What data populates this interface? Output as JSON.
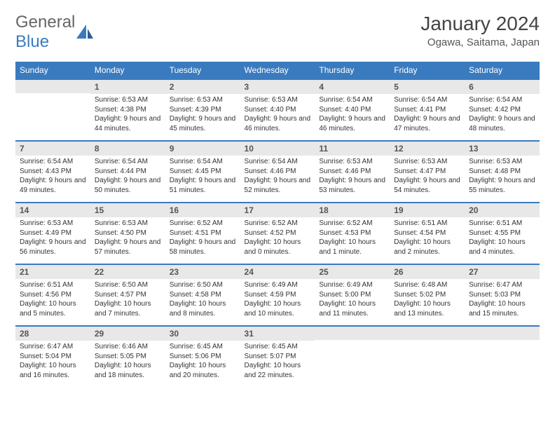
{
  "brand": {
    "part1": "General",
    "part2": "Blue"
  },
  "title": "January 2024",
  "location": "Ogawa, Saitama, Japan",
  "colors": {
    "accent": "#3a7bbf",
    "dayNumBg": "#e8e8e8",
    "text": "#333333",
    "bg": "#ffffff"
  },
  "dayHeaders": [
    "Sunday",
    "Monday",
    "Tuesday",
    "Wednesday",
    "Thursday",
    "Friday",
    "Saturday"
  ],
  "weeks": [
    [
      {
        "n": "",
        "sr": "",
        "ss": "",
        "dl": ""
      },
      {
        "n": "1",
        "sr": "Sunrise: 6:53 AM",
        "ss": "Sunset: 4:38 PM",
        "dl": "Daylight: 9 hours and 44 minutes."
      },
      {
        "n": "2",
        "sr": "Sunrise: 6:53 AM",
        "ss": "Sunset: 4:39 PM",
        "dl": "Daylight: 9 hours and 45 minutes."
      },
      {
        "n": "3",
        "sr": "Sunrise: 6:53 AM",
        "ss": "Sunset: 4:40 PM",
        "dl": "Daylight: 9 hours and 46 minutes."
      },
      {
        "n": "4",
        "sr": "Sunrise: 6:54 AM",
        "ss": "Sunset: 4:40 PM",
        "dl": "Daylight: 9 hours and 46 minutes."
      },
      {
        "n": "5",
        "sr": "Sunrise: 6:54 AM",
        "ss": "Sunset: 4:41 PM",
        "dl": "Daylight: 9 hours and 47 minutes."
      },
      {
        "n": "6",
        "sr": "Sunrise: 6:54 AM",
        "ss": "Sunset: 4:42 PM",
        "dl": "Daylight: 9 hours and 48 minutes."
      }
    ],
    [
      {
        "n": "7",
        "sr": "Sunrise: 6:54 AM",
        "ss": "Sunset: 4:43 PM",
        "dl": "Daylight: 9 hours and 49 minutes."
      },
      {
        "n": "8",
        "sr": "Sunrise: 6:54 AM",
        "ss": "Sunset: 4:44 PM",
        "dl": "Daylight: 9 hours and 50 minutes."
      },
      {
        "n": "9",
        "sr": "Sunrise: 6:54 AM",
        "ss": "Sunset: 4:45 PM",
        "dl": "Daylight: 9 hours and 51 minutes."
      },
      {
        "n": "10",
        "sr": "Sunrise: 6:54 AM",
        "ss": "Sunset: 4:46 PM",
        "dl": "Daylight: 9 hours and 52 minutes."
      },
      {
        "n": "11",
        "sr": "Sunrise: 6:53 AM",
        "ss": "Sunset: 4:46 PM",
        "dl": "Daylight: 9 hours and 53 minutes."
      },
      {
        "n": "12",
        "sr": "Sunrise: 6:53 AM",
        "ss": "Sunset: 4:47 PM",
        "dl": "Daylight: 9 hours and 54 minutes."
      },
      {
        "n": "13",
        "sr": "Sunrise: 6:53 AM",
        "ss": "Sunset: 4:48 PM",
        "dl": "Daylight: 9 hours and 55 minutes."
      }
    ],
    [
      {
        "n": "14",
        "sr": "Sunrise: 6:53 AM",
        "ss": "Sunset: 4:49 PM",
        "dl": "Daylight: 9 hours and 56 minutes."
      },
      {
        "n": "15",
        "sr": "Sunrise: 6:53 AM",
        "ss": "Sunset: 4:50 PM",
        "dl": "Daylight: 9 hours and 57 minutes."
      },
      {
        "n": "16",
        "sr": "Sunrise: 6:52 AM",
        "ss": "Sunset: 4:51 PM",
        "dl": "Daylight: 9 hours and 58 minutes."
      },
      {
        "n": "17",
        "sr": "Sunrise: 6:52 AM",
        "ss": "Sunset: 4:52 PM",
        "dl": "Daylight: 10 hours and 0 minutes."
      },
      {
        "n": "18",
        "sr": "Sunrise: 6:52 AM",
        "ss": "Sunset: 4:53 PM",
        "dl": "Daylight: 10 hours and 1 minute."
      },
      {
        "n": "19",
        "sr": "Sunrise: 6:51 AM",
        "ss": "Sunset: 4:54 PM",
        "dl": "Daylight: 10 hours and 2 minutes."
      },
      {
        "n": "20",
        "sr": "Sunrise: 6:51 AM",
        "ss": "Sunset: 4:55 PM",
        "dl": "Daylight: 10 hours and 4 minutes."
      }
    ],
    [
      {
        "n": "21",
        "sr": "Sunrise: 6:51 AM",
        "ss": "Sunset: 4:56 PM",
        "dl": "Daylight: 10 hours and 5 minutes."
      },
      {
        "n": "22",
        "sr": "Sunrise: 6:50 AM",
        "ss": "Sunset: 4:57 PM",
        "dl": "Daylight: 10 hours and 7 minutes."
      },
      {
        "n": "23",
        "sr": "Sunrise: 6:50 AM",
        "ss": "Sunset: 4:58 PM",
        "dl": "Daylight: 10 hours and 8 minutes."
      },
      {
        "n": "24",
        "sr": "Sunrise: 6:49 AM",
        "ss": "Sunset: 4:59 PM",
        "dl": "Daylight: 10 hours and 10 minutes."
      },
      {
        "n": "25",
        "sr": "Sunrise: 6:49 AM",
        "ss": "Sunset: 5:00 PM",
        "dl": "Daylight: 10 hours and 11 minutes."
      },
      {
        "n": "26",
        "sr": "Sunrise: 6:48 AM",
        "ss": "Sunset: 5:02 PM",
        "dl": "Daylight: 10 hours and 13 minutes."
      },
      {
        "n": "27",
        "sr": "Sunrise: 6:47 AM",
        "ss": "Sunset: 5:03 PM",
        "dl": "Daylight: 10 hours and 15 minutes."
      }
    ],
    [
      {
        "n": "28",
        "sr": "Sunrise: 6:47 AM",
        "ss": "Sunset: 5:04 PM",
        "dl": "Daylight: 10 hours and 16 minutes."
      },
      {
        "n": "29",
        "sr": "Sunrise: 6:46 AM",
        "ss": "Sunset: 5:05 PM",
        "dl": "Daylight: 10 hours and 18 minutes."
      },
      {
        "n": "30",
        "sr": "Sunrise: 6:45 AM",
        "ss": "Sunset: 5:06 PM",
        "dl": "Daylight: 10 hours and 20 minutes."
      },
      {
        "n": "31",
        "sr": "Sunrise: 6:45 AM",
        "ss": "Sunset: 5:07 PM",
        "dl": "Daylight: 10 hours and 22 minutes."
      },
      {
        "n": "",
        "sr": "",
        "ss": "",
        "dl": ""
      },
      {
        "n": "",
        "sr": "",
        "ss": "",
        "dl": ""
      },
      {
        "n": "",
        "sr": "",
        "ss": "",
        "dl": ""
      }
    ]
  ]
}
